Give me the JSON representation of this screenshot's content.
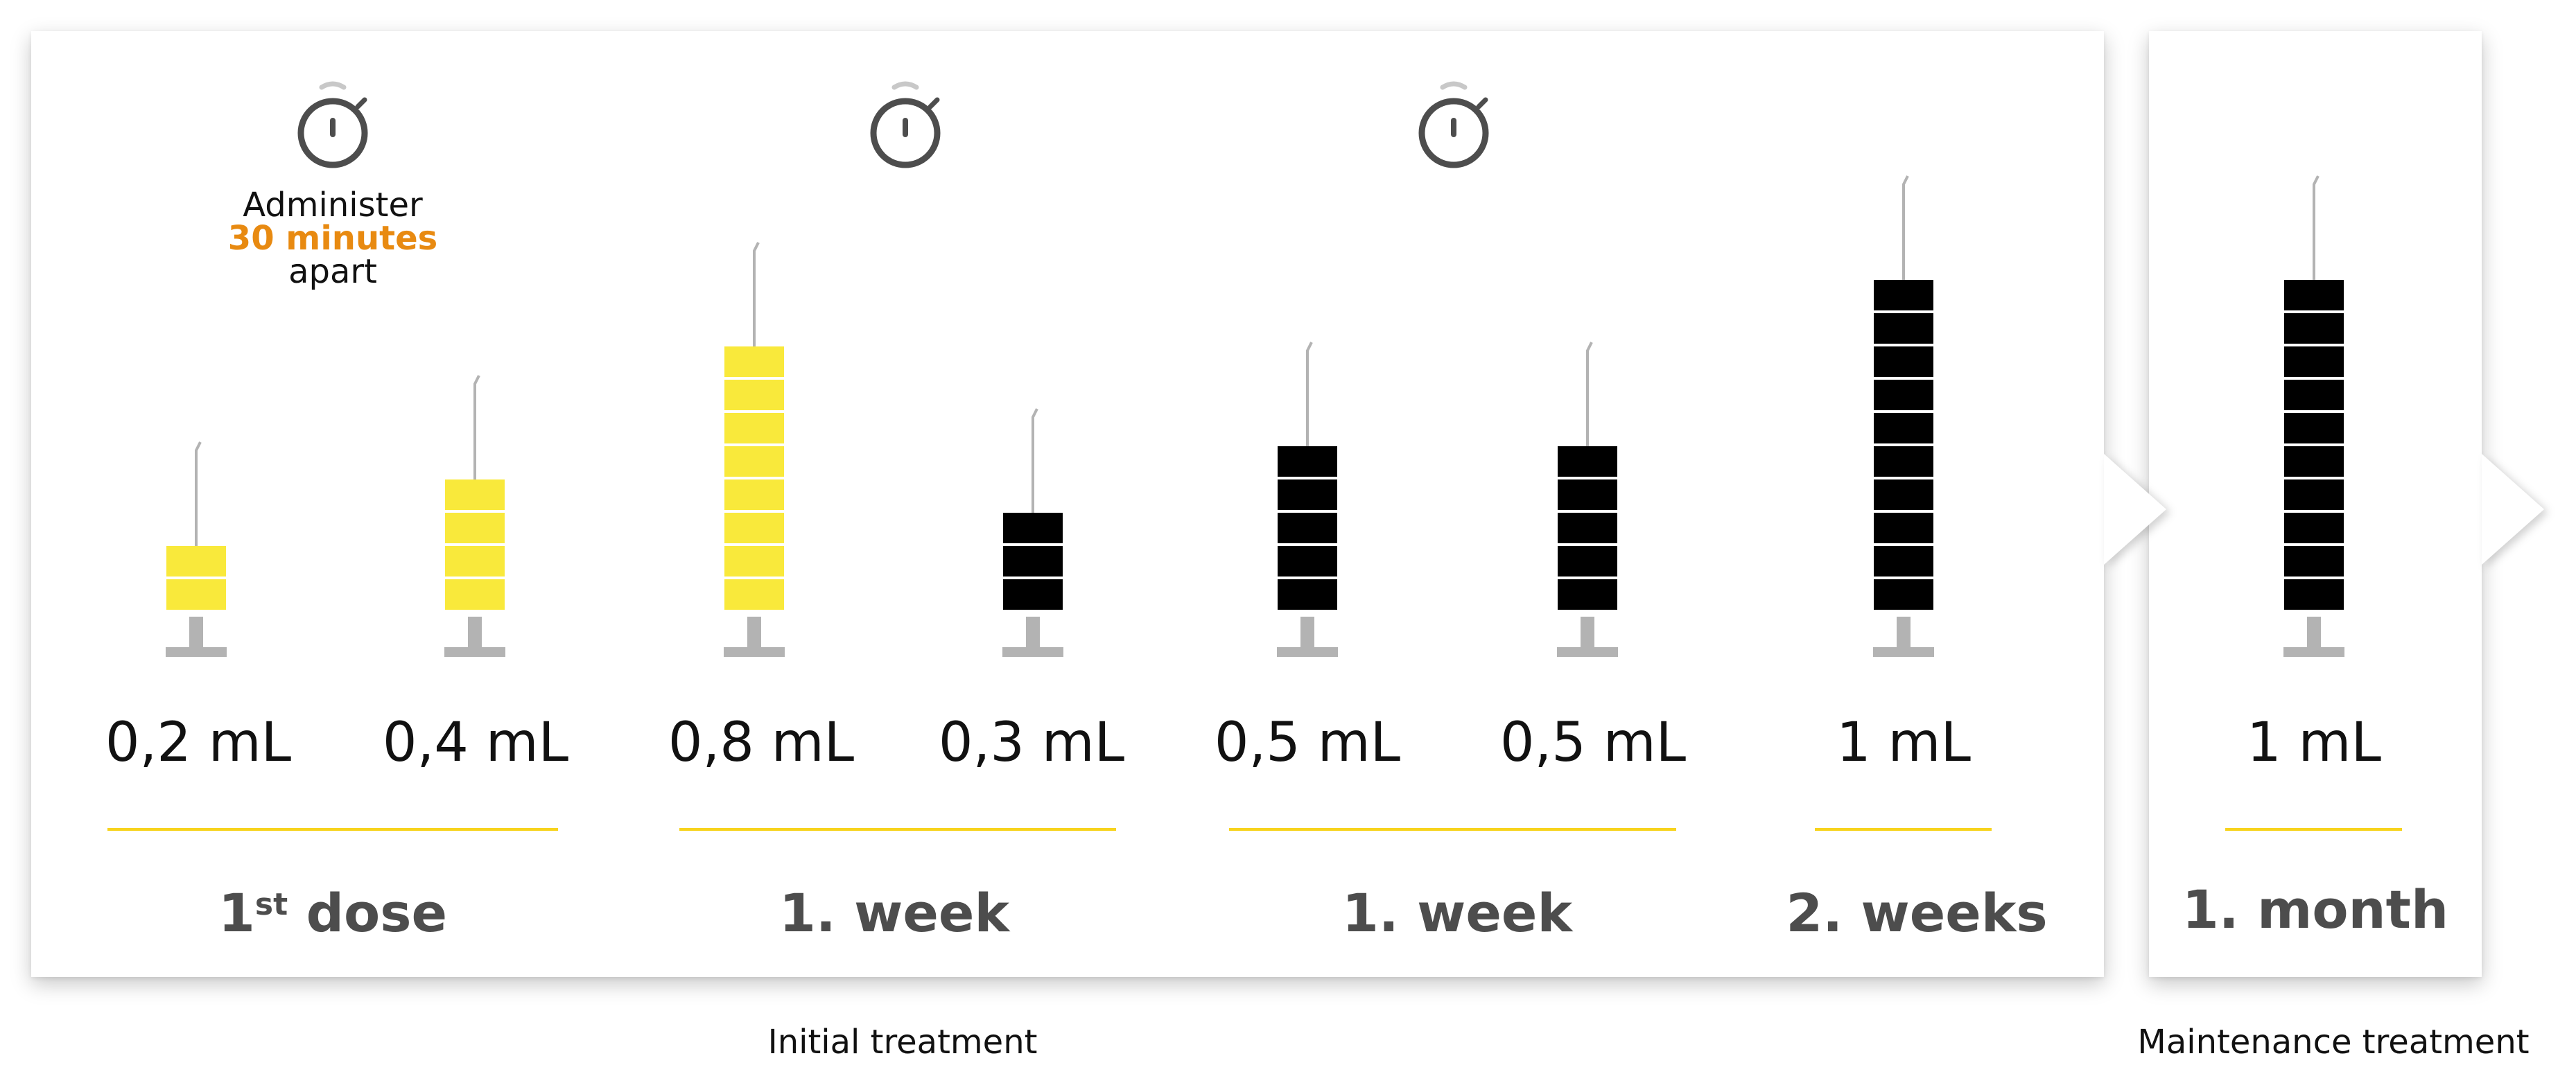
{
  "colors": {
    "yellow": "#f9e93b",
    "black": "#000000",
    "timer": "#4d4d4d",
    "highlight": "#e88a11",
    "rule": "#f7d31c",
    "needle": "#b3b3b3",
    "plunger": "#b3b3b3"
  },
  "icons": [
    "stopwatch-icon",
    "syringe-icon"
  ],
  "timer_note": {
    "line1": "Administer",
    "highlight": "30 minutes",
    "line3": "apart"
  },
  "syringes": [
    {
      "amount": "0,2 mL",
      "units": 2,
      "color": "yellow"
    },
    {
      "amount": "0,4 mL",
      "units": 4,
      "color": "yellow"
    },
    {
      "amount": "0,8 mL",
      "units": 8,
      "color": "yellow"
    },
    {
      "amount": "0,3 mL",
      "units": 3,
      "color": "black"
    },
    {
      "amount": "0,5 mL",
      "units": 5,
      "color": "black"
    },
    {
      "amount": "0,5 mL",
      "units": 5,
      "color": "black"
    },
    {
      "amount": "1 mL",
      "units": 10,
      "color": "black"
    },
    {
      "amount": "1 mL",
      "units": 10,
      "color": "black"
    }
  ],
  "periods": {
    "dose": {
      "number": "1",
      "sup": "st",
      "text": "dose"
    },
    "week_a": "1.  week",
    "week_b": "1.  week",
    "two_weeks": "2. weeks",
    "month": "1.  month"
  },
  "captions": {
    "initial": "Initial treatment",
    "maintenance": "Maintenance treatment"
  }
}
